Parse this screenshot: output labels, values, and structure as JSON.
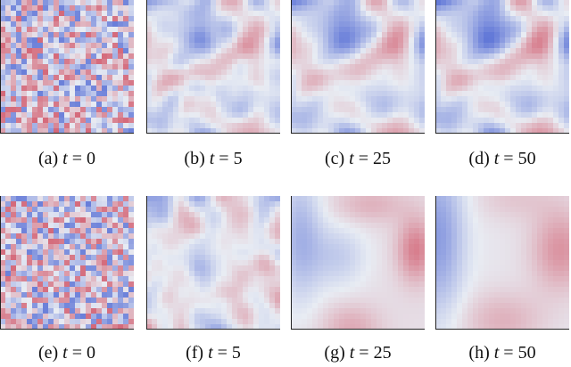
{
  "figure": {
    "panels": [
      {
        "label": "(a)",
        "variable": "t",
        "relation": "=",
        "value": "0"
      },
      {
        "label": "(b)",
        "variable": "t",
        "relation": "=",
        "value": "5"
      },
      {
        "label": "(c)",
        "variable": "t",
        "relation": "=",
        "value": "25"
      },
      {
        "label": "(d)",
        "variable": "t",
        "relation": "=",
        "value": "50"
      },
      {
        "label": "(e)",
        "variable": "t",
        "relation": "=",
        "value": "0"
      },
      {
        "label": "(f)",
        "variable": "t",
        "relation": "=",
        "value": "5"
      },
      {
        "label": "(g)",
        "variable": "t",
        "relation": "=",
        "value": "25"
      },
      {
        "label": "(h)",
        "variable": "t",
        "relation": "=",
        "value": "50"
      }
    ],
    "colors": {
      "negative": "#5b72d6",
      "neutral": "#e8ecf3",
      "positive": "#d25a6c"
    }
  }
}
